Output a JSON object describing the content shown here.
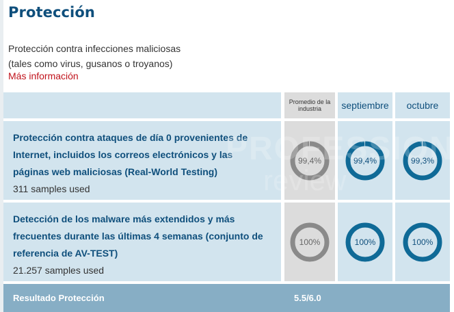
{
  "section": {
    "title": "Protección",
    "description_line1": "Protección contra infecciones maliciosas",
    "description_line2": "(tales como virus, gusanos o troyanos)",
    "more_info": "Más información"
  },
  "columns": {
    "industry_average": "Promedio de la industria",
    "month1": "septiembre",
    "month2": "octubre"
  },
  "rows": [
    {
      "title": "Protección contra ataques de día 0 provenientes de Internet, incluidos los correos electrónicos y las páginas web maliciosas (Real-World Testing)",
      "samples": "311 samples used",
      "values": [
        {
          "label": "99,4%",
          "fraction": 0.994,
          "style": "gray"
        },
        {
          "label": "99,4%",
          "fraction": 0.994,
          "style": "blue"
        },
        {
          "label": "99,3%",
          "fraction": 0.993,
          "style": "blue"
        }
      ]
    },
    {
      "title": "Detección de los malware más extendidos y más frecuentes durante las últimas 4 semanas (conjunto de referencia de AV-TEST)",
      "samples": "21.257 samples used",
      "values": [
        {
          "label": "100%",
          "fraction": 1.0,
          "style": "gray"
        },
        {
          "label": "100%",
          "fraction": 1.0,
          "style": "blue"
        },
        {
          "label": "100%",
          "fraction": 1.0,
          "style": "blue"
        }
      ]
    }
  ],
  "result": {
    "label": "Resultado Protección",
    "score": "5.5/6.0"
  },
  "watermark": {
    "line1": "PROFESSIONAL",
    "line2": "review"
  },
  "colors": {
    "ring_blue": "#0f6a97",
    "ring_gray": "#8a8a8a",
    "ring_track": "#ffffff",
    "header_blue": "#d2e4ee",
    "result_bar": "#87aec5",
    "link_red": "#c0121b"
  }
}
